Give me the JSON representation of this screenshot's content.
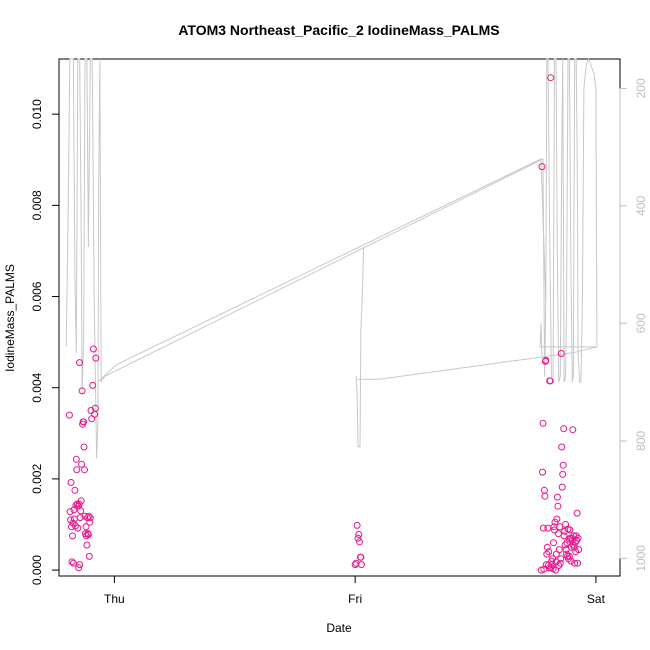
{
  "chart_data": {
    "type": "scatter",
    "title": "ATOM3 Northeast_Pacific_2 IodineMass_PALMS",
    "xlabel": "Date",
    "ylabel": "IodineMass_PALMS",
    "x_unit": "days",
    "x_ticks": [
      {
        "label": "Thu",
        "value": 1.0
      },
      {
        "label": "Fri",
        "value": 2.0
      },
      {
        "label": "Sat",
        "value": 3.0
      }
    ],
    "xlim": [
      0.77,
      3.1
    ],
    "ylim": [
      -0.00013,
      0.01121
    ],
    "y_ticks": [
      0.0,
      0.002,
      0.004,
      0.006,
      0.008,
      0.01
    ],
    "y_tick_labels": [
      "0.000",
      "0.002",
      "0.004",
      "0.006",
      "0.008",
      "0.010"
    ],
    "y2_ticks": [
      200,
      400,
      600,
      800,
      1000
    ],
    "y2_tick_labels": [
      "200",
      "400",
      "600",
      "800",
      "1000"
    ],
    "y2lim": [
      1030,
      150
    ],
    "y2_axis_color": "#c0c0c0",
    "grid": false,
    "legend": "none",
    "series": [
      {
        "kind": "points",
        "color": "#e8168c",
        "points": [
          [
            0.813,
            0.0034
          ],
          [
            0.816,
            0.00128
          ],
          [
            0.818,
            0.0011
          ],
          [
            0.82,
            0.00192
          ],
          [
            0.822,
            0.00095
          ],
          [
            0.824,
            0.00018
          ],
          [
            0.826,
            0.00075
          ],
          [
            0.828,
            0.00103
          ],
          [
            0.83,
            0.00015
          ],
          [
            0.832,
            0.00132
          ],
          [
            0.834,
            0.00112
          ],
          [
            0.836,
            0.00175
          ],
          [
            0.838,
            0.00097
          ],
          [
            0.84,
            0.00142
          ],
          [
            0.842,
            0.00243
          ],
          [
            0.844,
            0.0022
          ],
          [
            0.846,
            0.00145
          ],
          [
            0.848,
            0.00092
          ],
          [
            0.85,
            0.0014
          ],
          [
            0.852,
            5e-05
          ],
          [
            0.854,
            0.00145
          ],
          [
            0.856,
            0.00012
          ],
          [
            0.858,
            0.00115
          ],
          [
            0.86,
            0.0013
          ],
          [
            0.862,
            0.00152
          ],
          [
            0.864,
            0.00232
          ],
          [
            0.866,
            0.00393
          ],
          [
            0.868,
            0.0032
          ],
          [
            0.87,
            0.00325
          ],
          [
            0.872,
            0.00325
          ],
          [
            0.874,
            0.0027
          ],
          [
            0.876,
            0.0022
          ],
          [
            0.878,
            0.00118
          ],
          [
            0.88,
            0.0008
          ],
          [
            0.882,
            0.00095
          ],
          [
            0.884,
            0.00075
          ],
          [
            0.886,
            0.00055
          ],
          [
            0.888,
            0.00115
          ],
          [
            0.89,
            0.0008
          ],
          [
            0.892,
            0.00078
          ],
          [
            0.894,
            0.00118
          ],
          [
            0.896,
            0.0003
          ],
          [
            0.898,
            0.00105
          ],
          [
            0.9,
            0.00115
          ],
          [
            0.903,
            0.0035
          ],
          [
            0.906,
            0.00332
          ],
          [
            0.91,
            0.00405
          ],
          [
            0.913,
            0.00485
          ],
          [
            0.918,
            0.00342
          ],
          [
            0.921,
            0.00355
          ],
          [
            0.923,
            0.00465
          ],
          [
            0.855,
            0.00455
          ],
          [
            2.0,
            0.00012
          ],
          [
            2.004,
            0.00015
          ],
          [
            2.008,
            0.00098
          ],
          [
            2.012,
            0.0007
          ],
          [
            2.015,
            0.00078
          ],
          [
            2.018,
            0.00062
          ],
          [
            2.022,
            0.00028
          ],
          [
            2.024,
            0.00028
          ],
          [
            2.026,
            0.00012
          ],
          [
            2.773,
            0.0
          ],
          [
            2.776,
            0.00885
          ],
          [
            2.778,
            0.00215
          ],
          [
            2.78,
            0.00322
          ],
          [
            2.782,
            0.00092
          ],
          [
            2.784,
            2e-05
          ],
          [
            2.786,
            0.00175
          ],
          [
            2.788,
            0.00162
          ],
          [
            2.79,
            0.00458
          ],
          [
            2.792,
            0.0046
          ],
          [
            2.794,
            0.00012
          ],
          [
            2.796,
            0.00035
          ],
          [
            2.798,
            0.0005
          ],
          [
            2.8,
            0.00092
          ],
          [
            2.802,
            0.0001
          ],
          [
            2.804,
            0.0004
          ],
          [
            2.806,
            5e-05
          ],
          [
            2.808,
            0.00415
          ],
          [
            2.81,
            0.00415
          ],
          [
            2.812,
            0.0108
          ],
          [
            2.814,
            5e-05
          ],
          [
            2.816,
            0.0002
          ],
          [
            2.818,
            0.00012
          ],
          [
            2.82,
            0.00025
          ],
          [
            2.822,
            3e-05
          ],
          [
            2.824,
            0.0006
          ],
          [
            2.826,
            0.00095
          ],
          [
            2.828,
            0.00088
          ],
          [
            2.83,
            0.00105
          ],
          [
            2.832,
            0.0
          ],
          [
            2.834,
            0.00018
          ],
          [
            2.836,
            0.00035
          ],
          [
            2.838,
            0.00112
          ],
          [
            2.84,
            0.0016
          ],
          [
            2.842,
            0.0014
          ],
          [
            2.844,
            0.0008
          ],
          [
            2.846,
            0.0001
          ],
          [
            2.848,
            0.00045
          ],
          [
            2.85,
            0.00095
          ],
          [
            2.852,
            0.00015
          ],
          [
            2.854,
            0.00025
          ],
          [
            2.856,
            0.00475
          ],
          [
            2.858,
            0.0027
          ],
          [
            2.86,
            0.00182
          ],
          [
            2.862,
            0.0021
          ],
          [
            2.864,
            0.0023
          ],
          [
            2.866,
            0.0031
          ],
          [
            2.868,
            0.00075
          ],
          [
            2.87,
            0.00085
          ],
          [
            2.872,
            0.00055
          ],
          [
            2.874,
            0.001
          ],
          [
            2.876,
            0.00045
          ],
          [
            2.878,
            0.00035
          ],
          [
            2.88,
            0.0006
          ],
          [
            2.882,
            0.0003
          ],
          [
            2.884,
            0.0009
          ],
          [
            2.886,
            0.00025
          ],
          [
            2.888,
            0.00068
          ],
          [
            2.89,
            0.0003
          ],
          [
            2.892,
            0.00088
          ],
          [
            2.894,
            0.0007
          ],
          [
            2.896,
            0.0002
          ],
          [
            2.898,
            0.0005
          ],
          [
            2.9,
            0.0007
          ],
          [
            2.902,
            0.00065
          ],
          [
            2.904,
            0.00308
          ],
          [
            2.906,
            0.00055
          ],
          [
            2.908,
            0.00075
          ],
          [
            2.91,
            0.0005
          ],
          [
            2.912,
            0.00015
          ],
          [
            2.914,
            0.0006
          ],
          [
            2.916,
            0.0004
          ],
          [
            2.918,
            0.00075
          ],
          [
            2.92,
            0.00065
          ],
          [
            2.922,
            0.00125
          ],
          [
            2.924,
            0.00015
          ],
          [
            2.926,
            0.0007
          ],
          [
            2.928,
            0.00045
          ]
        ]
      },
      {
        "kind": "line",
        "axis": "right",
        "color": "#c8c8c8",
        "points": [
          [
            0.8,
            640
          ],
          [
            0.808,
            420
          ],
          [
            0.815,
            150
          ],
          [
            0.822,
            150
          ],
          [
            0.83,
            150
          ],
          [
            0.836,
            520
          ],
          [
            0.842,
            650
          ],
          [
            0.848,
            150
          ],
          [
            0.856,
            150
          ],
          [
            0.862,
            450
          ],
          [
            0.866,
            720
          ],
          [
            0.872,
            630
          ],
          [
            0.878,
            150
          ],
          [
            0.886,
            150
          ],
          [
            0.892,
            470
          ],
          [
            0.9,
            150
          ],
          [
            0.908,
            150
          ],
          [
            0.916,
            560
          ],
          [
            0.926,
            830
          ],
          [
            0.932,
            760
          ],
          [
            0.935,
            360
          ],
          [
            0.94,
            150
          ],
          [
            0.945,
            700
          ],
          [
            0.96,
            690
          ],
          [
            2.78,
            320
          ],
          [
            2.787,
            690
          ],
          [
            2.792,
            560
          ],
          [
            2.796,
            150
          ],
          [
            2.801,
            150
          ],
          [
            2.808,
            450
          ],
          [
            2.815,
            690
          ],
          [
            2.822,
            690
          ],
          [
            2.828,
            150
          ],
          [
            2.834,
            150
          ],
          [
            2.84,
            500
          ],
          [
            2.846,
            700
          ],
          [
            2.852,
            690
          ],
          [
            2.858,
            320
          ],
          [
            2.862,
            150
          ],
          [
            2.868,
            700
          ],
          [
            2.874,
            690
          ],
          [
            2.878,
            580
          ],
          [
            2.884,
            150
          ],
          [
            2.89,
            150
          ],
          [
            2.896,
            500
          ],
          [
            2.902,
            700
          ],
          [
            2.906,
            690
          ],
          [
            2.912,
            150
          ],
          [
            2.918,
            150
          ],
          [
            2.922,
            300
          ],
          [
            2.926,
            650
          ],
          [
            2.932,
            700
          ],
          [
            2.938,
            700
          ],
          [
            2.944,
            560
          ],
          [
            2.95,
            200
          ],
          [
            2.96,
            160
          ],
          [
            2.97,
            150
          ],
          [
            2.992,
            175
          ],
          [
            3.0,
            200
          ],
          [
            3.004,
            640
          ],
          [
            2.768,
            640
          ],
          [
            2.772,
            600
          ],
          [
            2.776,
            660
          ]
        ]
      },
      {
        "kind": "line",
        "axis": "right",
        "color": "#c8c8c8",
        "points": [
          [
            0.93,
            700
          ],
          [
            1.01,
            670
          ],
          [
            2.772,
            320
          ],
          [
            2.792,
            560
          ]
        ]
      },
      {
        "kind": "line",
        "axis": "right",
        "color": "#c8c8c8",
        "points": [
          [
            2.003,
            690
          ],
          [
            2.004,
            690
          ],
          [
            2.008,
            720
          ],
          [
            2.012,
            810
          ],
          [
            2.016,
            810
          ],
          [
            2.02,
            810
          ],
          [
            2.024,
            610
          ],
          [
            2.03,
            550
          ],
          [
            2.035,
            470
          ]
        ]
      },
      {
        "kind": "line",
        "axis": "right",
        "color": "#c8c8c8",
        "points": [
          [
            2.01,
            695
          ],
          [
            2.1,
            695
          ],
          [
            2.904,
            650
          ],
          [
            3.004,
            640
          ]
        ]
      }
    ]
  }
}
